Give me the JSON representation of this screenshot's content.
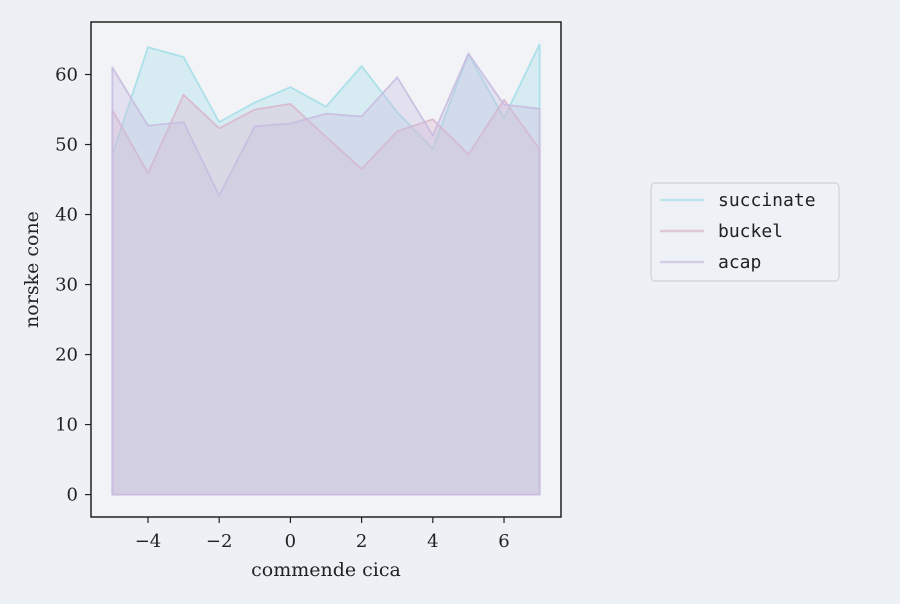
{
  "chart_data": {
    "type": "area",
    "xlabel": "commende cica",
    "ylabel": "norske cone",
    "xlim": [
      -5.6,
      7.6
    ],
    "ylim": [
      -3.2,
      67.5
    ],
    "x_ticks": [
      -4,
      -2,
      0,
      2,
      4,
      6
    ],
    "x_tick_labels": [
      "−4",
      "−2",
      "0",
      "2",
      "4",
      "6"
    ],
    "y_ticks": [
      0,
      10,
      20,
      30,
      40,
      50,
      60
    ],
    "y_tick_labels": [
      "0",
      "10",
      "20",
      "30",
      "40",
      "50",
      "60"
    ],
    "grid": false,
    "legend_position": "right",
    "x": [
      -5,
      -4,
      -3,
      -2,
      -1,
      0,
      1,
      2,
      3,
      4,
      5,
      6,
      7
    ],
    "series": [
      {
        "name": "succinate",
        "color": "#a6dfe8",
        "values": [
          48.5,
          63.9,
          62.5,
          53.2,
          56.0,
          58.2,
          55.4,
          61.2,
          54.6,
          49.4,
          62.9,
          53.8,
          64.3
        ]
      },
      {
        "name": "buckel",
        "color": "#d9b7cc",
        "values": [
          54.9,
          45.9,
          57.1,
          52.3,
          55.0,
          55.8,
          51.1,
          46.5,
          51.9,
          53.6,
          48.6,
          56.4,
          49.3
        ]
      },
      {
        "name": "acap",
        "color": "#c8bde0",
        "values": [
          61.0,
          52.7,
          53.2,
          42.7,
          52.6,
          53.0,
          54.4,
          54.0,
          59.6,
          51.3,
          63.0,
          55.7,
          55.1
        ]
      }
    ]
  }
}
